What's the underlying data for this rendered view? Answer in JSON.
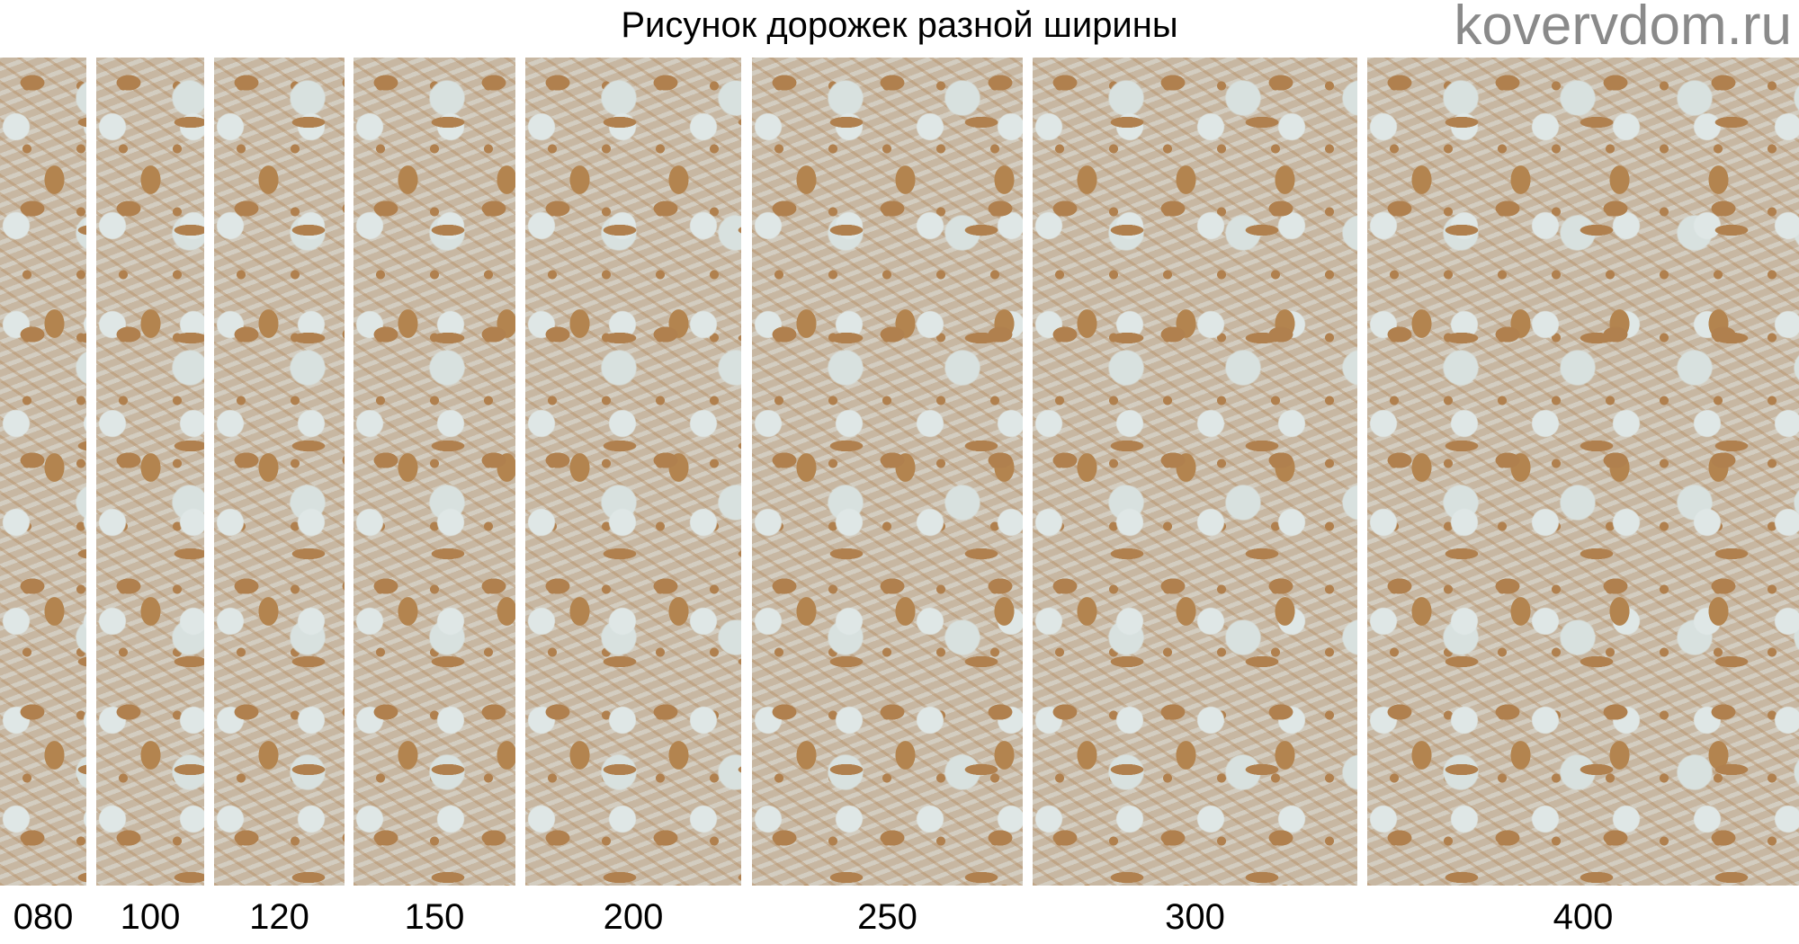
{
  "title": "Рисунок дорожек разной ширины",
  "pattern_colors": {
    "base": "#c7b7a2",
    "accent": "#b0804e",
    "light": "#dfe7e6"
  },
  "strips": [
    {
      "label": "080"
    },
    {
      "label": "100"
    },
    {
      "label": "120"
    },
    {
      "label": "150"
    },
    {
      "label": "200"
    },
    {
      "label": "250"
    },
    {
      "label": "300"
    },
    {
      "label": "400"
    }
  ],
  "watermark": "kovervdom.ru"
}
